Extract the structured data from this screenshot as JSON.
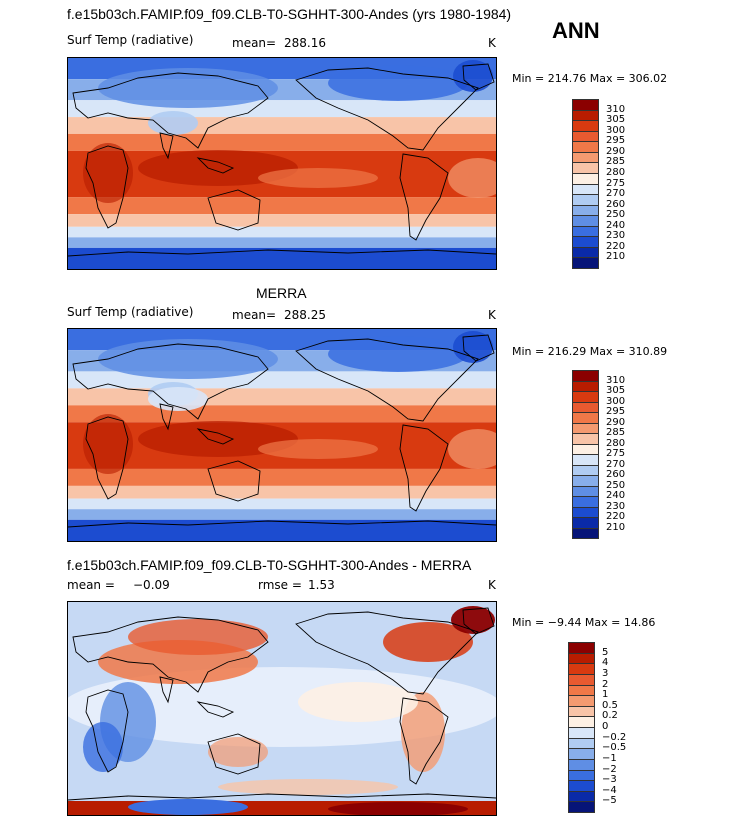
{
  "header": {
    "main_title": "f.e15b03ch.FAMIP.f09_f09.CLB-T0-SGHHT-300-Andes (yrs 1980-1984)",
    "season": "ANN"
  },
  "chart_data": [
    {
      "type": "heatmap",
      "title": "",
      "variable": "Surf Temp (radiative)",
      "mean_label": "mean=",
      "mean": "288.16",
      "units": "K",
      "minmax": "Min = 214.76 Max = 306.02",
      "levels": [
        "310",
        "305",
        "300",
        "295",
        "290",
        "285",
        "280",
        "275",
        "270",
        "260",
        "250",
        "240",
        "230",
        "220",
        "210"
      ],
      "colors": [
        "#8b0000",
        "#b81c00",
        "#d83a10",
        "#e85a30",
        "#f07848",
        "#f49a70",
        "#f8c4a8",
        "#fdf0e4",
        "#d8e6f8",
        "#b0ccf2",
        "#88aeea",
        "#5f8ee4",
        "#3a6ee0",
        "#1c4cd0",
        "#0a2aa8",
        "#061478"
      ]
    },
    {
      "type": "heatmap",
      "title": "MERRA",
      "variable": "Surf Temp (radiative)",
      "mean_label": "mean=",
      "mean": "288.25",
      "units": "K",
      "minmax": "Min = 216.29 Max = 310.89",
      "levels": [
        "310",
        "305",
        "300",
        "295",
        "290",
        "285",
        "280",
        "275",
        "270",
        "260",
        "250",
        "240",
        "230",
        "220",
        "210"
      ],
      "colors": [
        "#8b0000",
        "#b81c00",
        "#d83a10",
        "#e85a30",
        "#f07848",
        "#f49a70",
        "#f8c4a8",
        "#fdf0e4",
        "#d8e6f8",
        "#b0ccf2",
        "#88aeea",
        "#5f8ee4",
        "#3a6ee0",
        "#1c4cd0",
        "#0a2aa8",
        "#061478"
      ]
    },
    {
      "type": "heatmap",
      "title": "f.e15b03ch.FAMIP.f09_f09.CLB-T0-SGHHT-300-Andes - MERRA",
      "mean_label": "mean =",
      "mean": "−0.09",
      "rmse_label": "rmse =",
      "rmse": "1.53",
      "units": "K",
      "minmax": "Min =   −9.44  Max =   14.86",
      "levels": [
        "5",
        "4",
        "3",
        "2",
        "1",
        "0.5",
        "0.2",
        "0",
        "−0.2",
        "−0.5",
        "−1",
        "−2",
        "−3",
        "−4",
        "−5"
      ],
      "colors": [
        "#8b0000",
        "#b81c00",
        "#d83a10",
        "#e85a30",
        "#f07848",
        "#f49a70",
        "#f8c4a8",
        "#fdf0e4",
        "#d8e6f8",
        "#b0ccf2",
        "#88aeea",
        "#5f8ee4",
        "#3a6ee0",
        "#1c4cd0",
        "#0a2aa8",
        "#061478"
      ]
    }
  ]
}
